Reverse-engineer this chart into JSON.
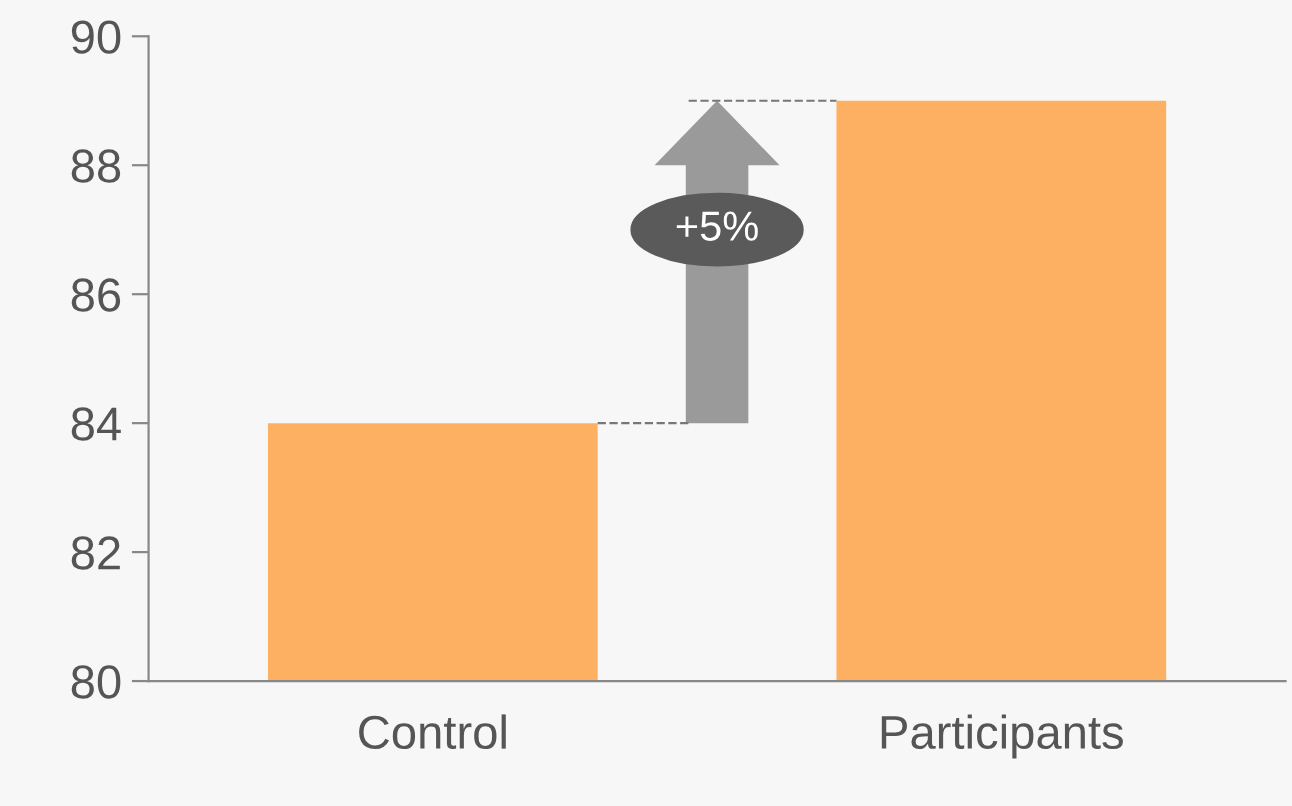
{
  "chart_data": {
    "type": "bar",
    "categories": [
      "Control",
      "Participants"
    ],
    "values": [
      84,
      89
    ],
    "color": "#fdb062",
    "ylim": [
      80,
      90
    ],
    "yticks": [
      80,
      82,
      84,
      86,
      88,
      90
    ],
    "grid": false,
    "annotations": [
      "+5%"
    ]
  }
}
